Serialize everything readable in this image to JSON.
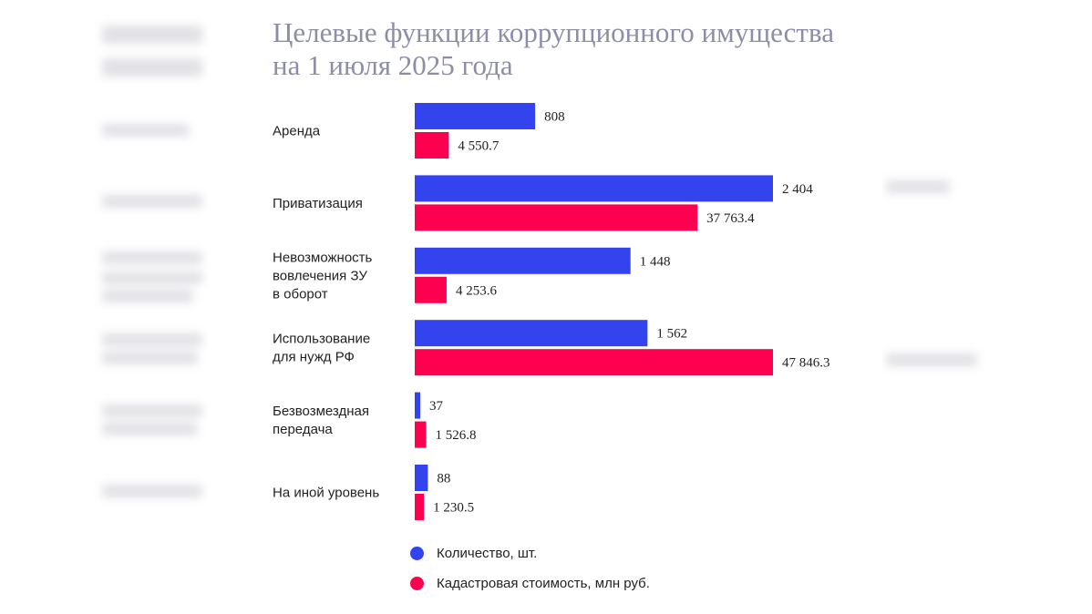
{
  "chart_data": {
    "type": "bar",
    "orientation": "horizontal",
    "title": "Целевые функции коррупционного имущества на 1 июля 2025 года",
    "categories": [
      [
        "Аренда"
      ],
      [
        "Приватизация"
      ],
      [
        "Невозможность",
        "вовлечения ЗУ",
        "в оборот"
      ],
      [
        "Использование",
        "для нужд РФ"
      ],
      [
        "Безвозмездная",
        "передача"
      ],
      [
        "На иной уровень"
      ]
    ],
    "series": [
      {
        "name": "Количество, шт.",
        "color": "#3344ee",
        "values": [
          808,
          2404,
          1448,
          1562,
          37,
          88
        ],
        "labels": [
          "808",
          "2 404",
          "1 448",
          "1 562",
          "37",
          "88"
        ],
        "xlim": [
          0,
          2404
        ]
      },
      {
        "name": "Кадастровая стоимость, млн руб.",
        "color": "#ff0050",
        "values": [
          4550.7,
          37763.4,
          4253.6,
          47846.3,
          1526.8,
          1230.5
        ],
        "labels": [
          "4 550.7",
          "37 763.4",
          "4 253.6",
          "47 846.3",
          "1 526.8",
          "1 230.5"
        ],
        "xlim": [
          0,
          47846.3
        ]
      }
    ],
    "legend_position": "bottom",
    "grid": false
  }
}
